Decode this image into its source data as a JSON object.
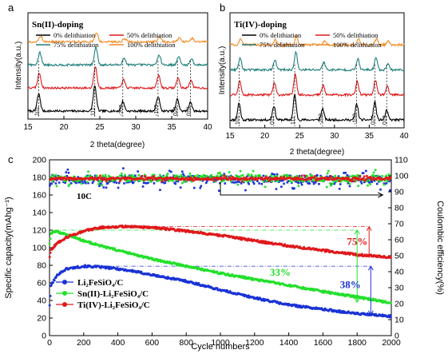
{
  "panels": [
    {
      "letter": "a",
      "type": "line",
      "title": "Sn(II)-doping",
      "xlabel": "2 theta(degree)",
      "ylabel": "Intensity(a.u.)",
      "xlim": [
        15,
        40
      ],
      "xticks": [
        15,
        20,
        25,
        30,
        35,
        40
      ],
      "legend": [
        "0% delithiation",
        "50% delithiation",
        "75% delithiation",
        "100% delithiation"
      ],
      "colors": [
        "#000000",
        "#e0191b",
        "#1f7f7a",
        "#f28c28"
      ],
      "offsets": [
        0,
        1,
        2,
        3
      ],
      "peaks": [
        {
          "x": 16.5,
          "h": 1.0,
          "w": 0.22
        },
        {
          "x": 24.3,
          "h": 1.45,
          "w": 0.22
        },
        {
          "x": 28.2,
          "h": 0.55,
          "w": 0.22
        },
        {
          "x": 33.1,
          "h": 0.85,
          "w": 0.22
        },
        {
          "x": 35.8,
          "h": 0.7,
          "w": 0.2
        },
        {
          "x": 37.6,
          "h": 0.55,
          "w": 0.2
        }
      ],
      "peak_labels": [
        {
          "x": 16.5,
          "text": "101"
        },
        {
          "x": 24.3,
          "text": "111"
        },
        {
          "x": 28.2,
          "text": "-202"
        },
        {
          "x": 33.1,
          "text": "-103"
        },
        {
          "x": 35.8,
          "text": "020"
        },
        {
          "x": 37.6,
          "text": "013"
        }
      ]
    },
    {
      "letter": "b",
      "type": "line",
      "title": "Ti(IV)-doping",
      "xlabel": "2 theta(degree)",
      "ylabel": "Intensity(a.u.)",
      "xlim": [
        15,
        40
      ],
      "xticks": [
        15,
        20,
        25,
        30,
        35,
        40
      ],
      "legend": [
        "0% delithiation",
        "50% delithiation",
        "75% delithiation",
        "100% delithiation"
      ],
      "colors": [
        "#000000",
        "#e0191b",
        "#1f7f7a",
        "#f28c28"
      ],
      "offsets": [
        0,
        1,
        2,
        3
      ],
      "peaks": [
        {
          "x": 16.3,
          "h": 0.9,
          "w": 0.2
        },
        {
          "x": 21.3,
          "h": 0.75,
          "w": 0.2
        },
        {
          "x": 24.3,
          "h": 1.35,
          "w": 0.2
        },
        {
          "x": 28.3,
          "h": 0.6,
          "w": 0.2
        },
        {
          "x": 33.2,
          "h": 0.85,
          "w": 0.2
        },
        {
          "x": 35.8,
          "h": 0.95,
          "w": 0.2
        },
        {
          "x": 37.5,
          "h": 0.5,
          "w": 0.2
        }
      ],
      "peak_labels": [
        {
          "x": 16.3,
          "text": "101"
        },
        {
          "x": 21.3,
          "text": "011"
        },
        {
          "x": 24.3,
          "text": "111"
        },
        {
          "x": 28.3,
          "text": "-202"
        },
        {
          "x": 33.2,
          "text": "-103"
        },
        {
          "x": 35.8,
          "text": "020"
        },
        {
          "x": 37.5,
          "text": "013"
        }
      ]
    }
  ],
  "panel_c": {
    "letter": "c",
    "xlabel": "Cycle numbers",
    "ylabel": "Specific capacity(mAhg⁻¹)",
    "y2label": "Coulombic efficiency(%)",
    "xlim": [
      0,
      2000
    ],
    "ylim": [
      0,
      200
    ],
    "y2lim": [
      0,
      110
    ],
    "xticks": [
      0,
      200,
      400,
      600,
      800,
      1000,
      1200,
      1400,
      1600,
      1800,
      2000
    ],
    "yticks": [
      0,
      20,
      40,
      60,
      80,
      100,
      120,
      140,
      160,
      180,
      200
    ],
    "y2ticks": [
      0,
      10,
      20,
      30,
      40,
      50,
      60,
      70,
      80,
      90,
      100,
      110
    ],
    "rate_label": "10C",
    "legend": [
      "Li₂FeSiO₄/C",
      "Sn(II)-Li₂FeSiO₄/C",
      "Ti(IV)-Li₂FeSiO₄/C"
    ],
    "colors": [
      "#1a32d6",
      "#22e02a",
      "#e0191b"
    ],
    "capacity_series": [
      {
        "x": [
          1,
          10,
          50,
          100,
          200,
          300,
          400,
          500,
          600,
          800,
          1000,
          1200,
          1400,
          1600,
          1800,
          2000
        ],
        "y": [
          35,
          58,
          70,
          76,
          79,
          78,
          76,
          73,
          69,
          62,
          52,
          43,
          35,
          30,
          25,
          22
        ]
      },
      {
        "x": [
          1,
          10,
          30,
          50,
          100,
          200,
          300,
          400,
          500,
          600,
          800,
          1000,
          1200,
          1400,
          1600,
          1800,
          2000
        ],
        "y": [
          105,
          116,
          119,
          118,
          115,
          108,
          102,
          97,
          92,
          87,
          79,
          71,
          64,
          57,
          50,
          44,
          37
        ]
      },
      {
        "x": [
          1,
          10,
          50,
          100,
          200,
          300,
          400,
          500,
          600,
          800,
          1000,
          1200,
          1400,
          1600,
          1800,
          2000
        ],
        "y": [
          90,
          98,
          106,
          112,
          119,
          123,
          124,
          124,
          123,
          119,
          114,
          108,
          102,
          97,
          92,
          89
        ]
      }
    ],
    "efficiency_series": [
      {
        "mean": 97.5,
        "spread": 4.5
      },
      {
        "mean": 98.5,
        "spread": 3.5
      },
      {
        "mean": 98.2,
        "spread": 1.2
      }
    ],
    "annotations": [
      {
        "text": "75%",
        "color": "#e0191b",
        "x": 1740,
        "y": 103
      },
      {
        "text": "33%",
        "color": "#22e02a",
        "x": 1290,
        "y": 68
      },
      {
        "text": "38%",
        "color": "#1a32d6",
        "x": 1700,
        "y": 54
      }
    ],
    "ref_lines": [
      {
        "y": 124,
        "color": "#e0191b",
        "x_from": 420,
        "x_to": 1870
      },
      {
        "y": 120,
        "color": "#22e02a",
        "x_from": 30,
        "x_to": 1800
      },
      {
        "y": 79,
        "color": "#1a32d6",
        "x_from": 200,
        "x_to": 1880
      }
    ]
  }
}
